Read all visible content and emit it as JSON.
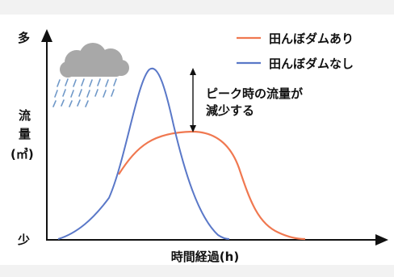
{
  "chart_data": {
    "type": "line",
    "y_axis": {
      "top_label": "多",
      "bottom_label": "少",
      "title_line1": "流",
      "title_line2": "量",
      "unit": "(㎥)"
    },
    "x_axis": {
      "label": "時間経過(h)"
    },
    "series": [
      {
        "name": "田んぼダムあり",
        "color": "#f07850"
      },
      {
        "name": "田んぼダムなし",
        "color": "#5a78c8"
      }
    ],
    "annotation": {
      "line1": "ピーク時の流量が",
      "line2": "減少する"
    }
  },
  "icons": {
    "weather": "rain-cloud-icon"
  }
}
